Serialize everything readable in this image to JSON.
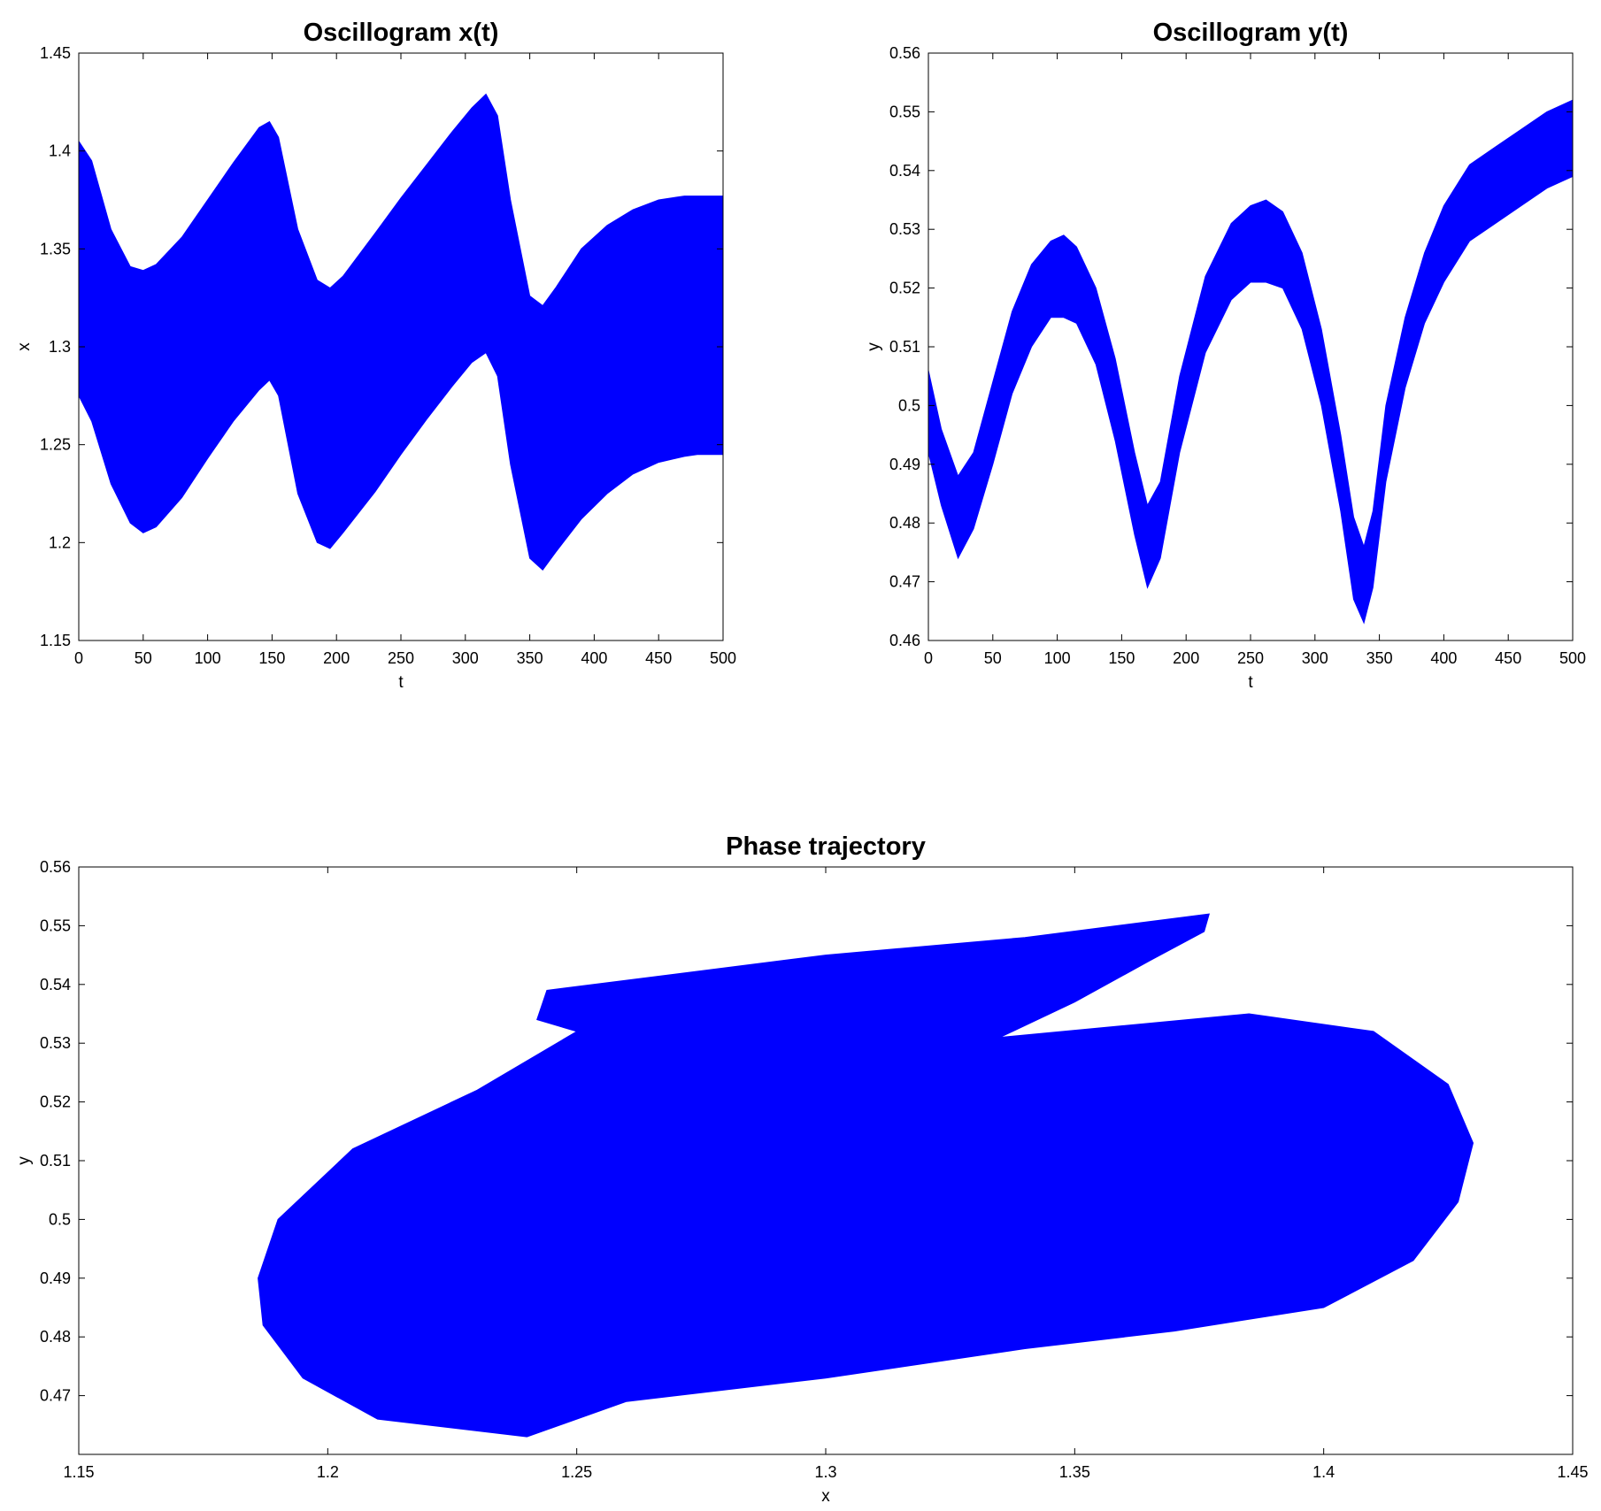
{
  "chart_data": [
    {
      "id": "x",
      "type": "line",
      "title": "Oscillogram x(t)",
      "xlabel": "t",
      "ylabel": "x",
      "xlim": [
        0,
        500
      ],
      "ylim": [
        1.15,
        1.45
      ],
      "xticks": [
        "0",
        "50",
        "100",
        "150",
        "200",
        "250",
        "300",
        "350",
        "400",
        "450",
        "500"
      ],
      "yticks": [
        "1.15",
        "1.2",
        "1.25",
        "1.3",
        "1.35",
        "1.4",
        "1.45"
      ],
      "grid": false,
      "color": "#0000ff",
      "series": [
        {
          "band_x": [
            0,
            10,
            25,
            40,
            50,
            60,
            80,
            100,
            120,
            140,
            148,
            155,
            170,
            185,
            195,
            205,
            230,
            250,
            270,
            290,
            305,
            316,
            325,
            335,
            350,
            360,
            370,
            390,
            410,
            430,
            450,
            470,
            480,
            490,
            500
          ],
          "upper": [
            1.405,
            1.395,
            1.36,
            1.341,
            1.339,
            1.342,
            1.356,
            1.375,
            1.394,
            1.412,
            1.415,
            1.407,
            1.36,
            1.334,
            1.33,
            1.336,
            1.358,
            1.376,
            1.393,
            1.41,
            1.422,
            1.429,
            1.418,
            1.375,
            1.326,
            1.321,
            1.33,
            1.35,
            1.362,
            1.37,
            1.375,
            1.377,
            1.377,
            1.377,
            1.377
          ],
          "lower": [
            1.275,
            1.262,
            1.23,
            1.21,
            1.205,
            1.208,
            1.223,
            1.243,
            1.262,
            1.278,
            1.283,
            1.275,
            1.225,
            1.2,
            1.197,
            1.205,
            1.226,
            1.245,
            1.263,
            1.28,
            1.292,
            1.297,
            1.285,
            1.24,
            1.192,
            1.186,
            1.195,
            1.212,
            1.225,
            1.235,
            1.241,
            1.244,
            1.245,
            1.245,
            1.245
          ]
        }
      ]
    },
    {
      "id": "y",
      "type": "line",
      "title": "Oscillogram y(t)",
      "xlabel": "t",
      "ylabel": "y",
      "xlim": [
        0,
        500
      ],
      "ylim": [
        0.46,
        0.56
      ],
      "xticks": [
        "0",
        "50",
        "100",
        "150",
        "200",
        "250",
        "300",
        "350",
        "400",
        "450",
        "500"
      ],
      "yticks": [
        "0.46",
        "0.47",
        "0.48",
        "0.49",
        "0.5",
        "0.51",
        "0.52",
        "0.53",
        "0.54",
        "0.55",
        "0.56"
      ],
      "grid": false,
      "color": "#0000ff",
      "series": [
        {
          "band_x": [
            0,
            10,
            23,
            35,
            50,
            65,
            80,
            95,
            105,
            115,
            130,
            145,
            160,
            170,
            180,
            195,
            215,
            235,
            250,
            262,
            275,
            290,
            305,
            320,
            330,
            338,
            345,
            355,
            370,
            385,
            400,
            420,
            440,
            460,
            480,
            500
          ],
          "upper": [
            0.506,
            0.496,
            0.488,
            0.492,
            0.504,
            0.516,
            0.524,
            0.528,
            0.529,
            0.527,
            0.52,
            0.508,
            0.492,
            0.483,
            0.487,
            0.505,
            0.522,
            0.531,
            0.534,
            0.535,
            0.533,
            0.526,
            0.513,
            0.495,
            0.481,
            0.476,
            0.482,
            0.5,
            0.515,
            0.526,
            0.534,
            0.541,
            0.544,
            0.547,
            0.55,
            0.552
          ],
          "lower": [
            0.492,
            0.483,
            0.474,
            0.479,
            0.49,
            0.502,
            0.51,
            0.515,
            0.515,
            0.514,
            0.507,
            0.494,
            0.478,
            0.469,
            0.474,
            0.492,
            0.509,
            0.518,
            0.521,
            0.521,
            0.52,
            0.513,
            0.5,
            0.482,
            0.467,
            0.463,
            0.469,
            0.487,
            0.503,
            0.514,
            0.521,
            0.528,
            0.531,
            0.534,
            0.537,
            0.539
          ]
        }
      ]
    },
    {
      "id": "phase",
      "type": "line",
      "title": "Phase trajectory",
      "xlabel": "x",
      "ylabel": "y",
      "xlim": [
        1.15,
        1.45
      ],
      "ylim": [
        0.46,
        0.56
      ],
      "xticks": [
        "1.15",
        "1.2",
        "1.25",
        "1.3",
        "1.35",
        "1.4",
        "1.45"
      ],
      "yticks": [
        "0.47",
        "0.48",
        "0.49",
        "0.5",
        "0.51",
        "0.52",
        "0.53",
        "0.54",
        "0.55",
        "0.56"
      ],
      "grid": false,
      "color": "#0000ff",
      "series": [
        {
          "outline_x": [
            1.377,
            1.376,
            1.365,
            1.35,
            1.335,
            1.385,
            1.41,
            1.425,
            1.43,
            1.427,
            1.418,
            1.4,
            1.37,
            1.34,
            1.3,
            1.26,
            1.24,
            1.21,
            1.195,
            1.187,
            1.186,
            1.19,
            1.205,
            1.23,
            1.25,
            1.242,
            1.244,
            1.3,
            1.34,
            1.377
          ],
          "outline_y": [
            0.552,
            0.549,
            0.544,
            0.537,
            0.531,
            0.535,
            0.532,
            0.523,
            0.513,
            0.503,
            0.493,
            0.485,
            0.481,
            0.478,
            0.473,
            0.469,
            0.463,
            0.466,
            0.473,
            0.482,
            0.49,
            0.5,
            0.512,
            0.522,
            0.532,
            0.534,
            0.539,
            0.545,
            0.548,
            0.552
          ]
        }
      ]
    }
  ]
}
